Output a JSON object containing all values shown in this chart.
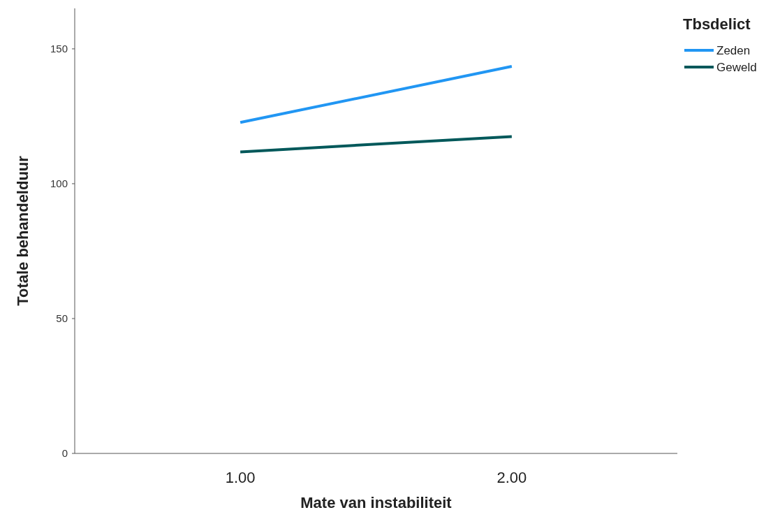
{
  "chart_data": {
    "type": "line",
    "xlabel": "Mate van instabiliteit",
    "ylabel": "Totale behandelduur",
    "legend_title": "Tbsdelict",
    "categories": [
      "1.00",
      "2.00"
    ],
    "series": [
      {
        "name": "Zeden",
        "color": "#2196f3",
        "values": [
          122.7,
          143.5
        ]
      },
      {
        "name": "Geweld",
        "color": "#00585a",
        "values": [
          111.8,
          117.5
        ]
      }
    ],
    "ylim": [
      0,
      165
    ],
    "yticks": [
      0,
      50,
      100,
      150
    ],
    "grid": false,
    "legend": "top right",
    "marker": "none",
    "line_style": "solid"
  }
}
